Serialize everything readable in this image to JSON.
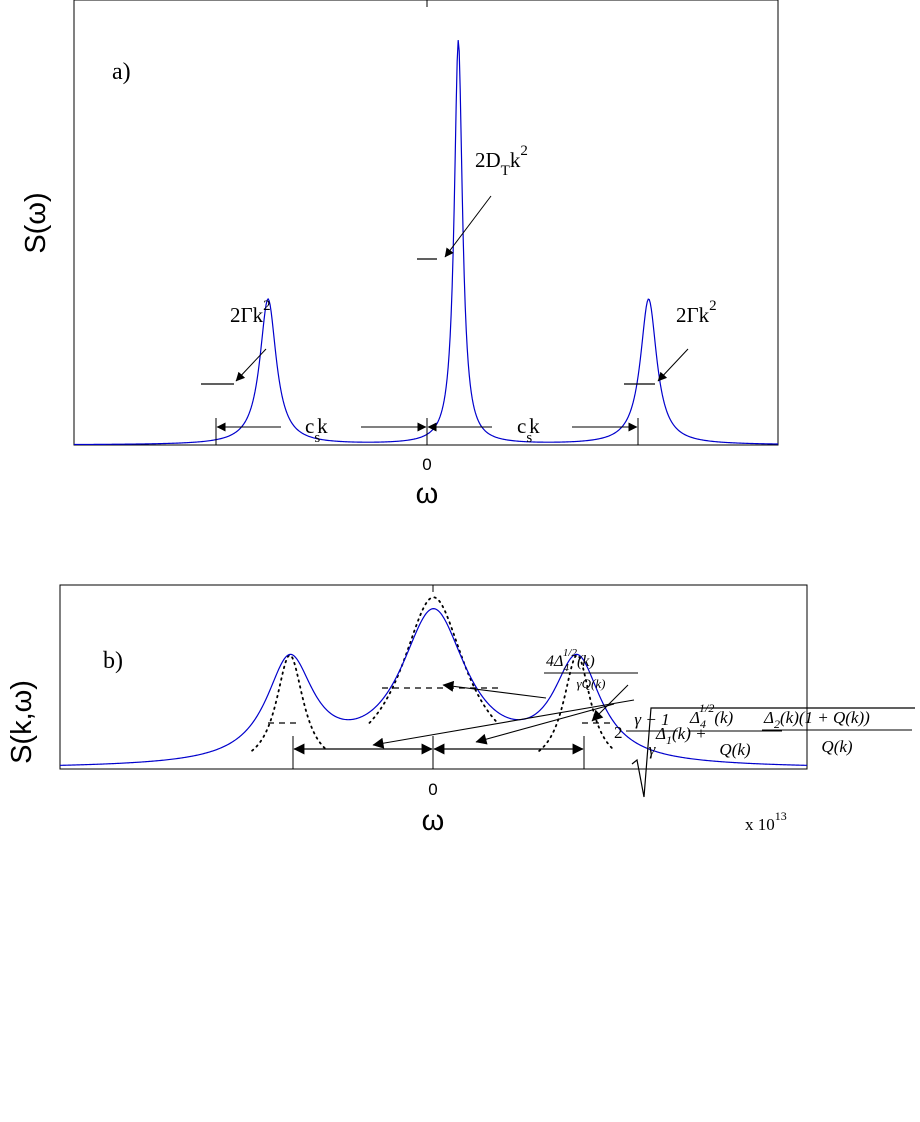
{
  "chart_data": [
    {
      "panel_label": "a)",
      "type": "line",
      "xlabel": "ω",
      "ylabel": "S(ω)",
      "xticks": [
        "0"
      ],
      "series": [
        {
          "color": "#0000cc",
          "peaks": [
            {
              "center": -1.0,
              "height": 0.36,
              "half_width": 0.052
            },
            {
              "center": 0.0,
              "height": 1.0,
              "half_width": 0.026
            },
            {
              "center": 1.0,
              "height": 0.36,
              "half_width": 0.052
            }
          ]
        }
      ],
      "xlim": [
        -2.02,
        1.68
      ],
      "ylim": [
        0,
        1.1
      ],
      "annotations": {
        "rayleigh_width": {
          "base": "2D",
          "sub": "T",
          "rest": "k",
          "sup": "2"
        },
        "brillouin_width_left": {
          "base": "2Γk",
          "sup": "2"
        },
        "brillouin_width_right": {
          "base": "2Γk",
          "sup": "2"
        },
        "shift_left": {
          "base": "c",
          "sub": "s",
          "rest": "k"
        },
        "shift_right": {
          "base": "c",
          "sub": "s",
          "rest": "k"
        }
      }
    },
    {
      "panel_label": "b)",
      "type": "line",
      "xlabel": "ω",
      "ylabel": "S(k,ω)",
      "xticks": [
        "0"
      ],
      "x_multiplier": "x 10",
      "x_multiplier_exp": "13",
      "xlim": [
        -2.6,
        2.6
      ],
      "ylim": [
        0,
        1.05
      ],
      "series": [
        {
          "style": "solid",
          "color": "#0000cc",
          "peaks": [
            {
              "center": -1.0,
              "height": 0.585,
              "half_width": 0.2
            },
            {
              "center": 0.0,
              "height": 0.87,
              "half_width": 0.28
            },
            {
              "center": 1.0,
              "height": 0.585,
              "half_width": 0.2
            }
          ]
        },
        {
          "style": "dotted",
          "color": "#000000",
          "peaks": [
            {
              "center": -1.0,
              "height": 0.65,
              "half_width": 0.115,
              "clip_below": 0.1
            },
            {
              "center": 0.0,
              "height": 0.98,
              "half_width": 0.27,
              "clip_below": 0.26
            },
            {
              "center": 1.0,
              "height": 0.65,
              "half_width": 0.115,
              "clip_below": 0.1
            }
          ]
        }
      ],
      "annotations": {
        "central_width": {
          "num": "4Δ",
          "num_sub": "4",
          "num_sup": "1/2",
          "num_tail": "(k)",
          "den": "γQ(k)"
        },
        "side_width": {
          "coef": "2",
          "frac1_num": "γ − 1",
          "frac1_den": "γ",
          "frac2_num": "Δ",
          "frac2_sub": "4",
          "frac2_sup": "1/2",
          "frac2_tail": "(k)",
          "frac2_den": "Q(k)"
        },
        "shift": {
          "lead": "Δ",
          "lead_sub": "1",
          "lead_tail": "(k) +",
          "num": "Δ",
          "num_sub": "2",
          "num_tail": "(k)(1 + Q(k))",
          "den": "Q(k)"
        }
      }
    }
  ]
}
